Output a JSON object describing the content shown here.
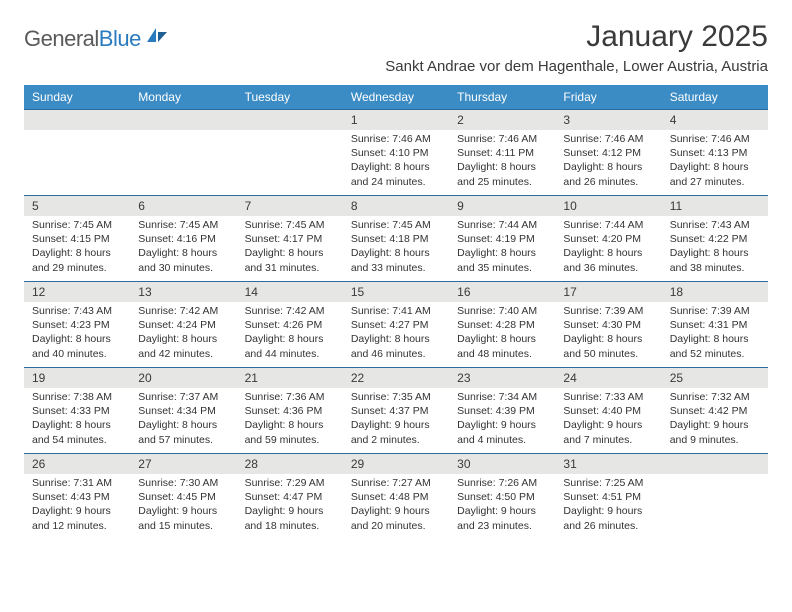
{
  "logo": {
    "word1": "General",
    "word2": "Blue"
  },
  "title": "January 2025",
  "location": "Sankt Andrae vor dem Hagenthale, Lower Austria, Austria",
  "dayNames": [
    "Sunday",
    "Monday",
    "Tuesday",
    "Wednesday",
    "Thursday",
    "Friday",
    "Saturday"
  ],
  "colors": {
    "headerBar": "#3b8bc4",
    "dayNumBg": "#e6e6e5",
    "dayNumBorder": "#2a6ca0",
    "text": "#333333"
  },
  "weeks": [
    [
      {
        "day": "",
        "sunrise": "",
        "sunset": "",
        "daylight": ""
      },
      {
        "day": "",
        "sunrise": "",
        "sunset": "",
        "daylight": ""
      },
      {
        "day": "",
        "sunrise": "",
        "sunset": "",
        "daylight": ""
      },
      {
        "day": "1",
        "sunrise": "Sunrise: 7:46 AM",
        "sunset": "Sunset: 4:10 PM",
        "daylight": "Daylight: 8 hours and 24 minutes."
      },
      {
        "day": "2",
        "sunrise": "Sunrise: 7:46 AM",
        "sunset": "Sunset: 4:11 PM",
        "daylight": "Daylight: 8 hours and 25 minutes."
      },
      {
        "day": "3",
        "sunrise": "Sunrise: 7:46 AM",
        "sunset": "Sunset: 4:12 PM",
        "daylight": "Daylight: 8 hours and 26 minutes."
      },
      {
        "day": "4",
        "sunrise": "Sunrise: 7:46 AM",
        "sunset": "Sunset: 4:13 PM",
        "daylight": "Daylight: 8 hours and 27 minutes."
      }
    ],
    [
      {
        "day": "5",
        "sunrise": "Sunrise: 7:45 AM",
        "sunset": "Sunset: 4:15 PM",
        "daylight": "Daylight: 8 hours and 29 minutes."
      },
      {
        "day": "6",
        "sunrise": "Sunrise: 7:45 AM",
        "sunset": "Sunset: 4:16 PM",
        "daylight": "Daylight: 8 hours and 30 minutes."
      },
      {
        "day": "7",
        "sunrise": "Sunrise: 7:45 AM",
        "sunset": "Sunset: 4:17 PM",
        "daylight": "Daylight: 8 hours and 31 minutes."
      },
      {
        "day": "8",
        "sunrise": "Sunrise: 7:45 AM",
        "sunset": "Sunset: 4:18 PM",
        "daylight": "Daylight: 8 hours and 33 minutes."
      },
      {
        "day": "9",
        "sunrise": "Sunrise: 7:44 AM",
        "sunset": "Sunset: 4:19 PM",
        "daylight": "Daylight: 8 hours and 35 minutes."
      },
      {
        "day": "10",
        "sunrise": "Sunrise: 7:44 AM",
        "sunset": "Sunset: 4:20 PM",
        "daylight": "Daylight: 8 hours and 36 minutes."
      },
      {
        "day": "11",
        "sunrise": "Sunrise: 7:43 AM",
        "sunset": "Sunset: 4:22 PM",
        "daylight": "Daylight: 8 hours and 38 minutes."
      }
    ],
    [
      {
        "day": "12",
        "sunrise": "Sunrise: 7:43 AM",
        "sunset": "Sunset: 4:23 PM",
        "daylight": "Daylight: 8 hours and 40 minutes."
      },
      {
        "day": "13",
        "sunrise": "Sunrise: 7:42 AM",
        "sunset": "Sunset: 4:24 PM",
        "daylight": "Daylight: 8 hours and 42 minutes."
      },
      {
        "day": "14",
        "sunrise": "Sunrise: 7:42 AM",
        "sunset": "Sunset: 4:26 PM",
        "daylight": "Daylight: 8 hours and 44 minutes."
      },
      {
        "day": "15",
        "sunrise": "Sunrise: 7:41 AM",
        "sunset": "Sunset: 4:27 PM",
        "daylight": "Daylight: 8 hours and 46 minutes."
      },
      {
        "day": "16",
        "sunrise": "Sunrise: 7:40 AM",
        "sunset": "Sunset: 4:28 PM",
        "daylight": "Daylight: 8 hours and 48 minutes."
      },
      {
        "day": "17",
        "sunrise": "Sunrise: 7:39 AM",
        "sunset": "Sunset: 4:30 PM",
        "daylight": "Daylight: 8 hours and 50 minutes."
      },
      {
        "day": "18",
        "sunrise": "Sunrise: 7:39 AM",
        "sunset": "Sunset: 4:31 PM",
        "daylight": "Daylight: 8 hours and 52 minutes."
      }
    ],
    [
      {
        "day": "19",
        "sunrise": "Sunrise: 7:38 AM",
        "sunset": "Sunset: 4:33 PM",
        "daylight": "Daylight: 8 hours and 54 minutes."
      },
      {
        "day": "20",
        "sunrise": "Sunrise: 7:37 AM",
        "sunset": "Sunset: 4:34 PM",
        "daylight": "Daylight: 8 hours and 57 minutes."
      },
      {
        "day": "21",
        "sunrise": "Sunrise: 7:36 AM",
        "sunset": "Sunset: 4:36 PM",
        "daylight": "Daylight: 8 hours and 59 minutes."
      },
      {
        "day": "22",
        "sunrise": "Sunrise: 7:35 AM",
        "sunset": "Sunset: 4:37 PM",
        "daylight": "Daylight: 9 hours and 2 minutes."
      },
      {
        "day": "23",
        "sunrise": "Sunrise: 7:34 AM",
        "sunset": "Sunset: 4:39 PM",
        "daylight": "Daylight: 9 hours and 4 minutes."
      },
      {
        "day": "24",
        "sunrise": "Sunrise: 7:33 AM",
        "sunset": "Sunset: 4:40 PM",
        "daylight": "Daylight: 9 hours and 7 minutes."
      },
      {
        "day": "25",
        "sunrise": "Sunrise: 7:32 AM",
        "sunset": "Sunset: 4:42 PM",
        "daylight": "Daylight: 9 hours and 9 minutes."
      }
    ],
    [
      {
        "day": "26",
        "sunrise": "Sunrise: 7:31 AM",
        "sunset": "Sunset: 4:43 PM",
        "daylight": "Daylight: 9 hours and 12 minutes."
      },
      {
        "day": "27",
        "sunrise": "Sunrise: 7:30 AM",
        "sunset": "Sunset: 4:45 PM",
        "daylight": "Daylight: 9 hours and 15 minutes."
      },
      {
        "day": "28",
        "sunrise": "Sunrise: 7:29 AM",
        "sunset": "Sunset: 4:47 PM",
        "daylight": "Daylight: 9 hours and 18 minutes."
      },
      {
        "day": "29",
        "sunrise": "Sunrise: 7:27 AM",
        "sunset": "Sunset: 4:48 PM",
        "daylight": "Daylight: 9 hours and 20 minutes."
      },
      {
        "day": "30",
        "sunrise": "Sunrise: 7:26 AM",
        "sunset": "Sunset: 4:50 PM",
        "daylight": "Daylight: 9 hours and 23 minutes."
      },
      {
        "day": "31",
        "sunrise": "Sunrise: 7:25 AM",
        "sunset": "Sunset: 4:51 PM",
        "daylight": "Daylight: 9 hours and 26 minutes."
      },
      {
        "day": "",
        "sunrise": "",
        "sunset": "",
        "daylight": ""
      }
    ]
  ]
}
